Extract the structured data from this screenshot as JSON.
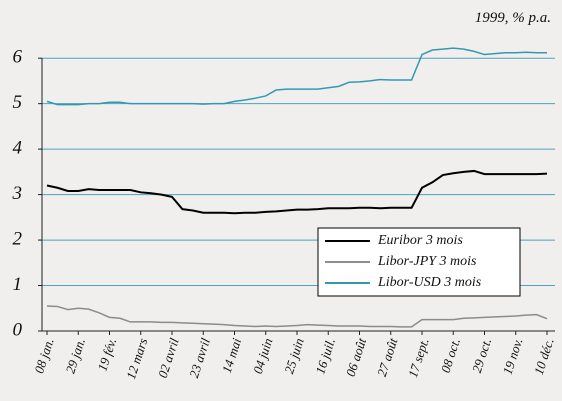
{
  "chart_data": {
    "type": "line",
    "annotation": "1999, % p.a.",
    "categories": [
      "08 jan.",
      null,
      null,
      "29 jan.",
      null,
      null,
      "19 fév.",
      null,
      null,
      "12 mars",
      null,
      null,
      "02 avril",
      null,
      null,
      "23 avril",
      null,
      null,
      "14 mai",
      null,
      null,
      "04 juin",
      null,
      null,
      "25 juin",
      null,
      null,
      "16 juil.",
      null,
      null,
      "06 août",
      null,
      null,
      "27 août",
      null,
      null,
      "17 sept.",
      null,
      null,
      "08 oct.",
      null,
      null,
      "29 oct.",
      null,
      null,
      "19 nov.",
      null,
      null,
      "10 déc."
    ],
    "series": [
      {
        "name": "Euribor 3 mois",
        "color": "#000000",
        "values": [
          3.2,
          3.15,
          3.08,
          3.08,
          3.12,
          3.1,
          3.1,
          3.1,
          3.1,
          3.05,
          3.03,
          3.0,
          2.95,
          2.68,
          2.65,
          2.6,
          2.6,
          2.6,
          2.59,
          2.6,
          2.6,
          2.62,
          2.63,
          2.65,
          2.67,
          2.67,
          2.68,
          2.7,
          2.7,
          2.7,
          2.71,
          2.71,
          2.7,
          2.71,
          2.71,
          2.71,
          3.15,
          3.27,
          3.43,
          3.47,
          3.5,
          3.52,
          3.45,
          3.45,
          3.45,
          3.45,
          3.45,
          3.45,
          3.46
        ]
      },
      {
        "name": "Libor-JPY 3 mois",
        "color": "#8c8c8c",
        "values": [
          0.55,
          0.54,
          0.47,
          0.5,
          0.48,
          0.4,
          0.3,
          0.28,
          0.2,
          0.2,
          0.2,
          0.19,
          0.19,
          0.18,
          0.17,
          0.16,
          0.15,
          0.14,
          0.12,
          0.11,
          0.1,
          0.11,
          0.1,
          0.11,
          0.12,
          0.14,
          0.13,
          0.12,
          0.11,
          0.11,
          0.11,
          0.1,
          0.1,
          0.1,
          0.09,
          0.09,
          0.25,
          0.25,
          0.25,
          0.25,
          0.28,
          0.29,
          0.3,
          0.31,
          0.32,
          0.33,
          0.35,
          0.36,
          0.27
        ]
      },
      {
        "name": "Libor-USD 3 mois",
        "color": "#3399b3",
        "values": [
          5.05,
          4.98,
          4.98,
          4.98,
          5.0,
          5.0,
          5.03,
          5.03,
          5.0,
          5.0,
          5.0,
          5.0,
          5.0,
          5.0,
          5.0,
          4.99,
          5.0,
          5.0,
          5.05,
          5.08,
          5.12,
          5.17,
          5.3,
          5.32,
          5.32,
          5.32,
          5.32,
          5.35,
          5.38,
          5.47,
          5.48,
          5.5,
          5.53,
          5.52,
          5.52,
          5.52,
          6.08,
          6.18,
          6.2,
          6.22,
          6.2,
          6.15,
          6.08,
          6.1,
          6.12,
          6.12,
          6.13,
          6.12,
          6.12
        ]
      }
    ],
    "ylim": [
      0,
      6.4
    ],
    "yticks": [
      0,
      1,
      2,
      3,
      4,
      5,
      6
    ],
    "grid": true,
    "grid_color": "#4aa3c0",
    "legend": "lower right"
  }
}
